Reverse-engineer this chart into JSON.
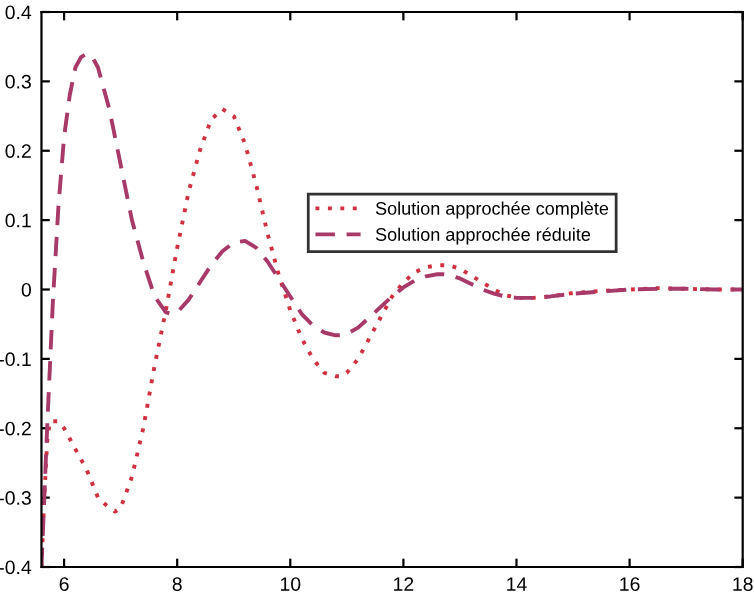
{
  "chart_data": {
    "type": "line",
    "xlim": [
      5.6,
      18
    ],
    "xticks": [
      6,
      8,
      10,
      12,
      14,
      16,
      18
    ],
    "ylim": [
      -0.4,
      0.4
    ],
    "yticks": [
      -0.4,
      -0.3,
      -0.2,
      -0.1,
      0,
      0.1,
      0.2,
      0.3,
      0.4
    ],
    "legend": "center",
    "grid": false,
    "series": [
      {
        "name": "Solution approchée complète",
        "color": "#d03040",
        "line_style": "dotted",
        "x": [
          5.6,
          5.65,
          5.7,
          5.75,
          5.8,
          5.9,
          6.0,
          6.2,
          6.4,
          6.6,
          6.8,
          6.9,
          7.0,
          7.2,
          7.4,
          7.6,
          7.8,
          8.0,
          8.2,
          8.4,
          8.6,
          8.8,
          9.0,
          9.2,
          9.4,
          9.6,
          9.8,
          10.0,
          10.2,
          10.4,
          10.6,
          10.8,
          10.9,
          11.0,
          11.2,
          11.4,
          11.6,
          11.8,
          12.0,
          12.2,
          12.4,
          12.6,
          12.8,
          13.0,
          13.2,
          13.4,
          13.6,
          13.8,
          14.0,
          14.3,
          14.6,
          15.0,
          15.5,
          16.0,
          16.5,
          17.0,
          17.5,
          18.0
        ],
        "values": [
          -0.4,
          -0.3,
          -0.22,
          -0.19,
          -0.19,
          -0.19,
          -0.2,
          -0.23,
          -0.26,
          -0.3,
          -0.315,
          -0.32,
          -0.315,
          -0.27,
          -0.2,
          -0.11,
          -0.03,
          0.06,
          0.14,
          0.2,
          0.245,
          0.26,
          0.25,
          0.21,
          0.15,
          0.08,
          0.02,
          -0.03,
          -0.07,
          -0.1,
          -0.12,
          -0.125,
          -0.125,
          -0.12,
          -0.1,
          -0.07,
          -0.04,
          -0.01,
          0.01,
          0.025,
          0.032,
          0.035,
          0.035,
          0.03,
          0.02,
          0.01,
          0.0,
          -0.008,
          -0.012,
          -0.012,
          -0.01,
          -0.005,
          -0.002,
          0.0,
          0.002,
          0.001,
          0.0,
          0.0
        ]
      },
      {
        "name": "Solution approchée réduite",
        "color": "#a83a6a",
        "line_style": "dashed",
        "x": [
          5.6,
          5.7,
          5.8,
          5.9,
          6.0,
          6.1,
          6.2,
          6.3,
          6.4,
          6.5,
          6.6,
          6.8,
          7.0,
          7.2,
          7.4,
          7.6,
          7.8,
          7.9,
          8.0,
          8.2,
          8.4,
          8.6,
          8.8,
          9.0,
          9.2,
          9.4,
          9.6,
          9.8,
          10.0,
          10.2,
          10.4,
          10.6,
          10.8,
          10.9,
          11.0,
          11.2,
          11.4,
          11.6,
          11.8,
          12.0,
          12.2,
          12.4,
          12.6,
          12.7,
          12.8,
          13.0,
          13.2,
          13.4,
          13.6,
          13.8,
          14.0,
          14.3,
          14.6,
          15.0,
          15.5,
          16.0,
          16.5,
          17.0,
          17.5,
          18.0
        ],
        "values": [
          -0.4,
          -0.2,
          -0.02,
          0.12,
          0.22,
          0.28,
          0.32,
          0.335,
          0.34,
          0.335,
          0.32,
          0.26,
          0.18,
          0.1,
          0.04,
          -0.01,
          -0.033,
          -0.035,
          -0.033,
          -0.015,
          0.01,
          0.035,
          0.055,
          0.068,
          0.07,
          0.06,
          0.04,
          0.015,
          -0.01,
          -0.035,
          -0.052,
          -0.062,
          -0.066,
          -0.066,
          -0.064,
          -0.055,
          -0.04,
          -0.025,
          -0.01,
          0.003,
          0.013,
          0.019,
          0.022,
          0.022,
          0.021,
          0.016,
          0.008,
          0.0,
          -0.006,
          -0.01,
          -0.012,
          -0.012,
          -0.01,
          -0.006,
          -0.003,
          0.0,
          0.001,
          0.001,
          0.0,
          0.0
        ]
      }
    ]
  }
}
